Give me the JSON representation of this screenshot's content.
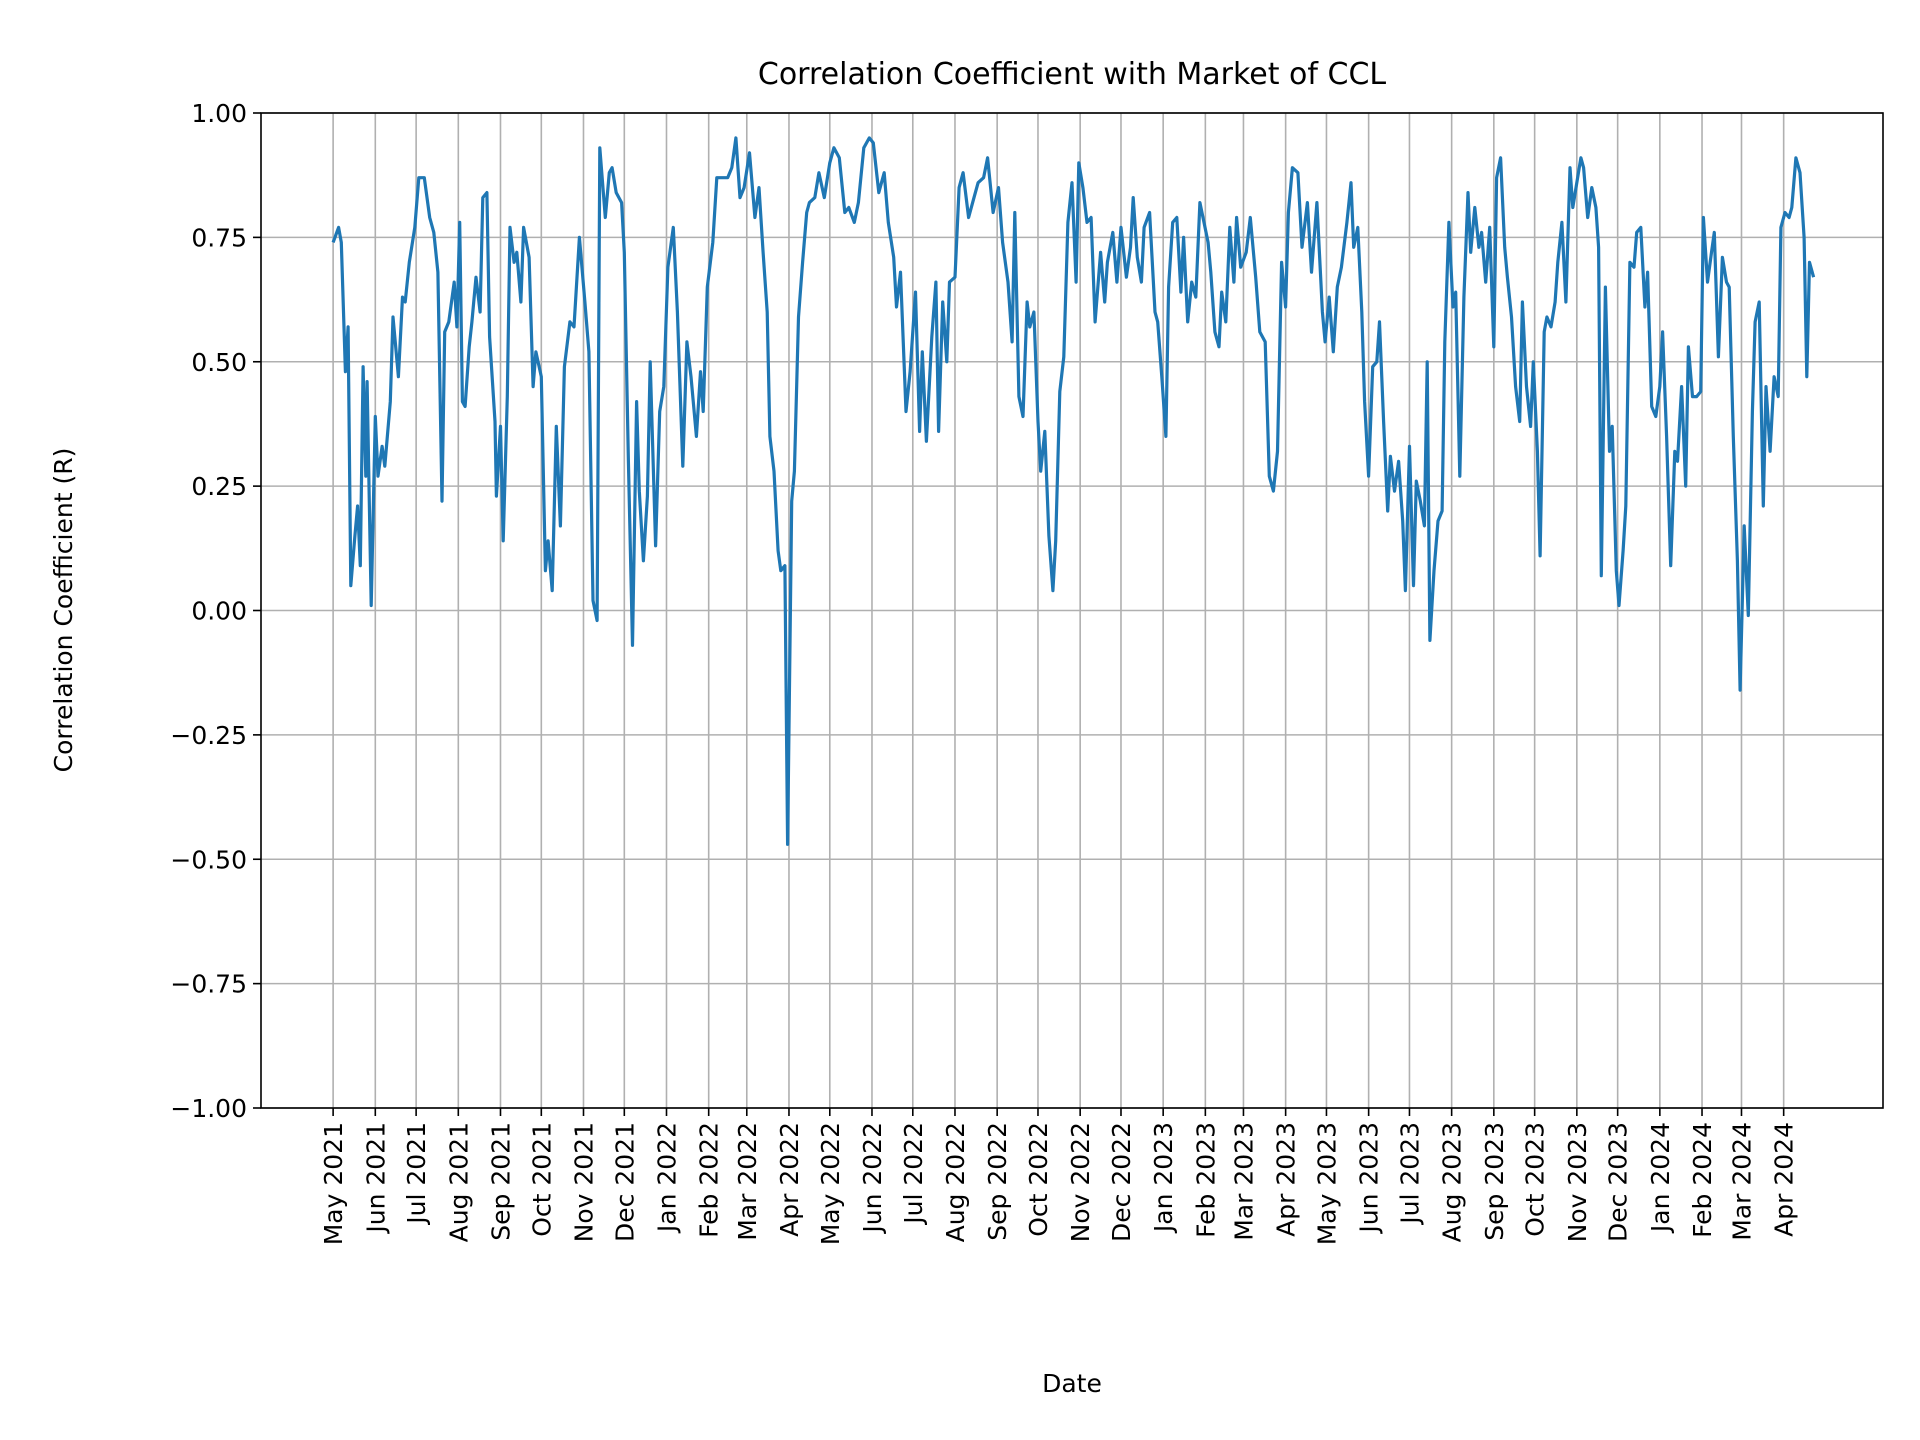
{
  "chart_data": {
    "type": "line",
    "title": "Correlation Coefficient with Market of CCL",
    "xlabel": "Date",
    "ylabel": "Correlation Coefficient (R)",
    "ylim": [
      -1.0,
      1.0
    ],
    "xlim": [
      "2021-03-09",
      "2024-06-13"
    ],
    "grid": true,
    "line_color": "#1f77b4",
    "y_ticks": [
      1.0,
      0.75,
      0.5,
      0.25,
      0.0,
      -0.25,
      -0.5,
      -0.75,
      -1.0
    ],
    "y_tick_labels": [
      "1.00",
      "0.75",
      "0.50",
      "0.25",
      "0.00",
      "−0.25",
      "−0.50",
      "−0.75",
      "−1.00"
    ],
    "x_ticks": [
      "2021-05-01",
      "2021-06-01",
      "2021-07-01",
      "2021-08-01",
      "2021-09-01",
      "2021-10-01",
      "2021-11-01",
      "2021-12-01",
      "2022-01-01",
      "2022-02-01",
      "2022-03-01",
      "2022-04-01",
      "2022-05-01",
      "2022-06-01",
      "2022-07-01",
      "2022-08-01",
      "2022-09-01",
      "2022-10-01",
      "2022-11-01",
      "2022-12-01",
      "2023-01-01",
      "2023-02-01",
      "2023-03-01",
      "2023-04-01",
      "2023-05-01",
      "2023-06-01",
      "2023-07-01",
      "2023-08-01",
      "2023-09-01",
      "2023-10-01",
      "2023-11-01",
      "2023-12-01",
      "2024-01-01",
      "2024-02-01",
      "2024-03-01",
      "2024-04-01"
    ],
    "x_tick_labels": [
      "May 2021",
      "Jun 2021",
      "Jul 2021",
      "Aug 2021",
      "Sep 2021",
      "Oct 2021",
      "Nov 2021",
      "Dec 2021",
      "Jan 2022",
      "Feb 2022",
      "Mar 2022",
      "Apr 2022",
      "May 2022",
      "Jun 2022",
      "Jul 2022",
      "Aug 2022",
      "Sep 2022",
      "Oct 2022",
      "Nov 2022",
      "Dec 2022",
      "Jan 2023",
      "Feb 2023",
      "Mar 2023",
      "Apr 2023",
      "May 2023",
      "Jun 2023",
      "Jul 2023",
      "Aug 2023",
      "Sep 2023",
      "Oct 2023",
      "Nov 2023",
      "Dec 2023",
      "Jan 2024",
      "Feb 2024",
      "Mar 2024",
      "Apr 2024"
    ],
    "series": [
      {
        "x": [
          "2021-05-01",
          "2021-05-05",
          "2021-05-07",
          "2021-05-10",
          "2021-05-12",
          "2021-05-14",
          "2021-05-17",
          "2021-05-19",
          "2021-05-21",
          "2021-05-23",
          "2021-05-25",
          "2021-05-26",
          "2021-05-29",
          "2021-06-01",
          "2021-06-03",
          "2021-06-06",
          "2021-06-08",
          "2021-06-12",
          "2021-06-14",
          "2021-06-18",
          "2021-06-21",
          "2021-06-23",
          "2021-06-26",
          "2021-06-30",
          "2021-07-03",
          "2021-07-07",
          "2021-07-11",
          "2021-07-14",
          "2021-07-17",
          "2021-07-20",
          "2021-07-22",
          "2021-07-25",
          "2021-07-29",
          "2021-07-31",
          "2021-08-02",
          "2021-08-04",
          "2021-08-06",
          "2021-08-09",
          "2021-08-11",
          "2021-08-14",
          "2021-08-17",
          "2021-08-19",
          "2021-08-22",
          "2021-08-24",
          "2021-08-28",
          "2021-08-29",
          "2021-09-01",
          "2021-09-03",
          "2021-09-06",
          "2021-09-08",
          "2021-09-11",
          "2021-09-13",
          "2021-09-16",
          "2021-09-18",
          "2021-09-22",
          "2021-09-25",
          "2021-09-27",
          "2021-10-01",
          "2021-10-04",
          "2021-10-06",
          "2021-10-09",
          "2021-10-12",
          "2021-10-15",
          "2021-10-18",
          "2021-10-22",
          "2021-10-25",
          "2021-10-29",
          "2021-11-02",
          "2021-11-05",
          "2021-11-08",
          "2021-11-11",
          "2021-11-13",
          "2021-11-17",
          "2021-11-20",
          "2021-11-22",
          "2021-11-25",
          "2021-11-29",
          "2021-12-01",
          "2021-12-04",
          "2021-12-07",
          "2021-12-10",
          "2021-12-12",
          "2021-12-15",
          "2021-12-18",
          "2021-12-20",
          "2021-12-24",
          "2021-12-27",
          "2021-12-30",
          "2022-01-02",
          "2022-01-06",
          "2022-01-09",
          "2022-01-13",
          "2022-01-16",
          "2022-01-19",
          "2022-01-23",
          "2022-01-26",
          "2022-01-28",
          "2022-01-31",
          "2022-02-04",
          "2022-02-07",
          "2022-02-11",
          "2022-02-15",
          "2022-02-18",
          "2022-02-21",
          "2022-02-24",
          "2022-02-27",
          "2022-03-03",
          "2022-03-07",
          "2022-03-10",
          "2022-03-13",
          "2022-03-16",
          "2022-03-18",
          "2022-03-21",
          "2022-03-24",
          "2022-03-26",
          "2022-03-29",
          "2022-03-31",
          "2022-04-03",
          "2022-04-05",
          "2022-04-08",
          "2022-04-11",
          "2022-04-14",
          "2022-04-16",
          "2022-04-20",
          "2022-04-23",
          "2022-04-27",
          "2022-05-01",
          "2022-05-04",
          "2022-05-08",
          "2022-05-12",
          "2022-05-15",
          "2022-05-19",
          "2022-05-22",
          "2022-05-26",
          "2022-05-30",
          "2022-06-02",
          "2022-06-06",
          "2022-06-10",
          "2022-06-13",
          "2022-06-17",
          "2022-06-19",
          "2022-06-22",
          "2022-06-26",
          "2022-06-29",
          "2022-07-03",
          "2022-07-06",
          "2022-07-08",
          "2022-07-11",
          "2022-07-15",
          "2022-07-18",
          "2022-07-20",
          "2022-07-23",
          "2022-07-26",
          "2022-07-28",
          "2022-08-01",
          "2022-08-04",
          "2022-08-07",
          "2022-08-11",
          "2022-08-15",
          "2022-08-18",
          "2022-08-22",
          "2022-08-25",
          "2022-08-29",
          "2022-09-02",
          "2022-09-05",
          "2022-09-09",
          "2022-09-12",
          "2022-09-14",
          "2022-09-17",
          "2022-09-20",
          "2022-09-23",
          "2022-09-25",
          "2022-09-28",
          "2022-10-01",
          "2022-10-03",
          "2022-10-06",
          "2022-10-09",
          "2022-10-12",
          "2022-10-14",
          "2022-10-17",
          "2022-10-20",
          "2022-10-23",
          "2022-10-26",
          "2022-10-29",
          "2022-10-31",
          "2022-11-03",
          "2022-11-06",
          "2022-11-09",
          "2022-11-12",
          "2022-11-16",
          "2022-11-19",
          "2022-11-21",
          "2022-11-25",
          "2022-11-28",
          "2022-12-01",
          "2022-12-05",
          "2022-12-08",
          "2022-12-10",
          "2022-12-13",
          "2022-12-16",
          "2022-12-18",
          "2022-12-22",
          "2022-12-26",
          "2022-12-28",
          "2022-12-31",
          "2023-01-03",
          "2023-01-05",
          "2023-01-08",
          "2023-01-11",
          "2023-01-14",
          "2023-01-16",
          "2023-01-19",
          "2023-01-22",
          "2023-01-25",
          "2023-01-28",
          "2023-01-31",
          "2023-02-03",
          "2023-02-05",
          "2023-02-08",
          "2023-02-11",
          "2023-02-13",
          "2023-02-16",
          "2023-02-19",
          "2023-02-22",
          "2023-02-24",
          "2023-02-27",
          "2023-03-03",
          "2023-03-06",
          "2023-03-10",
          "2023-03-13",
          "2023-03-17",
          "2023-03-20",
          "2023-03-23",
          "2023-03-26",
          "2023-03-29",
          "2023-04-01",
          "2023-04-03",
          "2023-04-06",
          "2023-04-10",
          "2023-04-13",
          "2023-04-17",
          "2023-04-20",
          "2023-04-24",
          "2023-04-28",
          "2023-04-30",
          "2023-05-03",
          "2023-05-06",
          "2023-05-09",
          "2023-05-12",
          "2023-05-16",
          "2023-05-19",
          "2023-05-21",
          "2023-05-24",
          "2023-05-27",
          "2023-05-29",
          "2023-06-01",
          "2023-06-04",
          "2023-06-07",
          "2023-06-09",
          "2023-06-12",
          "2023-06-15",
          "2023-06-17",
          "2023-06-20",
          "2023-06-23",
          "2023-06-26",
          "2023-06-28",
          "2023-07-01",
          "2023-07-04",
          "2023-07-06",
          "2023-07-09",
          "2023-07-12",
          "2023-07-14",
          "2023-07-16",
          "2023-07-19",
          "2023-07-22",
          "2023-07-25",
          "2023-07-27",
          "2023-07-30",
          "2023-08-02",
          "2023-08-04",
          "2023-08-07",
          "2023-08-10",
          "2023-08-13",
          "2023-08-15",
          "2023-08-18",
          "2023-08-21",
          "2023-08-23",
          "2023-08-26",
          "2023-08-29",
          "2023-09-01",
          "2023-09-03",
          "2023-09-06",
          "2023-09-09",
          "2023-09-11",
          "2023-09-14",
          "2023-09-17",
          "2023-09-20",
          "2023-09-22",
          "2023-09-25",
          "2023-09-28",
          "2023-09-30",
          "2023-10-03",
          "2023-10-05",
          "2023-10-08",
          "2023-10-10",
          "2023-10-13",
          "2023-10-16",
          "2023-10-18",
          "2023-10-21",
          "2023-10-24",
          "2023-10-27",
          "2023-10-29",
          "2023-11-01",
          "2023-11-04",
          "2023-11-06",
          "2023-11-09",
          "2023-11-12",
          "2023-11-15",
          "2023-11-17",
          "2023-11-19",
          "2023-11-22",
          "2023-11-25",
          "2023-11-27",
          "2023-11-30",
          "2023-12-02",
          "2023-12-05",
          "2023-12-07",
          "2023-12-10",
          "2023-12-13",
          "2023-12-15",
          "2023-12-18",
          "2023-12-21",
          "2023-12-23",
          "2023-12-26",
          "2023-12-29",
          "2024-01-01",
          "2024-01-03",
          "2024-01-06",
          "2024-01-09",
          "2024-01-12",
          "2024-01-14",
          "2024-01-17",
          "2024-01-20",
          "2024-01-22",
          "2024-01-25",
          "2024-01-28",
          "2024-01-31",
          "2024-02-02",
          "2024-02-05",
          "2024-02-08",
          "2024-02-10",
          "2024-02-13",
          "2024-02-16",
          "2024-02-19",
          "2024-02-21",
          "2024-02-24",
          "2024-02-27",
          "2024-02-29",
          "2024-03-03",
          "2024-03-06",
          "2024-03-09",
          "2024-03-11",
          "2024-03-14",
          "2024-03-17",
          "2024-03-19",
          "2024-03-22",
          "2024-03-25",
          "2024-03-28",
          "2024-03-30",
          "2024-04-02",
          "2024-04-05",
          "2024-04-07",
          "2024-04-10",
          "2024-04-13",
          "2024-04-16",
          "2024-04-18",
          "2024-04-20",
          "2024-04-23"
        ],
        "y": [
          0.74,
          0.77,
          0.74,
          0.48,
          0.57,
          0.05,
          0.15,
          0.21,
          0.09,
          0.49,
          0.27,
          0.46,
          0.01,
          0.39,
          0.27,
          0.33,
          0.29,
          0.42,
          0.59,
          0.47,
          0.63,
          0.62,
          0.7,
          0.77,
          0.87,
          0.87,
          0.79,
          0.76,
          0.68,
          0.22,
          0.56,
          0.58,
          0.66,
          0.57,
          0.78,
          0.42,
          0.41,
          0.53,
          0.58,
          0.67,
          0.6,
          0.83,
          0.84,
          0.55,
          0.38,
          0.23,
          0.37,
          0.14,
          0.43,
          0.77,
          0.7,
          0.72,
          0.62,
          0.77,
          0.71,
          0.45,
          0.52,
          0.47,
          0.08,
          0.14,
          0.04,
          0.37,
          0.17,
          0.49,
          0.58,
          0.57,
          0.75,
          0.62,
          0.52,
          0.02,
          -0.02,
          0.93,
          0.79,
          0.88,
          0.89,
          0.84,
          0.82,
          0.72,
          0.3,
          -0.07,
          0.42,
          0.24,
          0.1,
          0.23,
          0.5,
          0.13,
          0.4,
          0.45,
          0.69,
          0.77,
          0.6,
          0.29,
          0.54,
          0.47,
          0.35,
          0.48,
          0.4,
          0.65,
          0.74,
          0.87,
          0.87,
          0.87,
          0.89,
          0.95,
          0.83,
          0.85,
          0.92,
          0.79,
          0.85,
          0.72,
          0.6,
          0.35,
          0.28,
          0.12,
          0.08,
          0.09,
          -0.47,
          0.22,
          0.28,
          0.59,
          0.7,
          0.8,
          0.82,
          0.83,
          0.88,
          0.83,
          0.9,
          0.93,
          0.91,
          0.8,
          0.81,
          0.78,
          0.82,
          0.93,
          0.95,
          0.94,
          0.84,
          0.88,
          0.78,
          0.71,
          0.61,
          0.68,
          0.4,
          0.48,
          0.64,
          0.36,
          0.52,
          0.34,
          0.55,
          0.66,
          0.36,
          0.62,
          0.5,
          0.66,
          0.67,
          0.85,
          0.88,
          0.79,
          0.83,
          0.86,
          0.87,
          0.91,
          0.8,
          0.85,
          0.74,
          0.66,
          0.54,
          0.8,
          0.43,
          0.39,
          0.62,
          0.57,
          0.6,
          0.38,
          0.28,
          0.36,
          0.15,
          0.04,
          0.14,
          0.44,
          0.51,
          0.78,
          0.86,
          0.66,
          0.9,
          0.85,
          0.78,
          0.79,
          0.58,
          0.72,
          0.62,
          0.7,
          0.76,
          0.66,
          0.77,
          0.67,
          0.73,
          0.83,
          0.71,
          0.66,
          0.77,
          0.8,
          0.6,
          0.58,
          0.47,
          0.35,
          0.65,
          0.78,
          0.79,
          0.64,
          0.75,
          0.58,
          0.66,
          0.63,
          0.82,
          0.78,
          0.74,
          0.68,
          0.56,
          0.53,
          0.64,
          0.58,
          0.77,
          0.66,
          0.79,
          0.69,
          0.72,
          0.79,
          0.67,
          0.56,
          0.54,
          0.27,
          0.24,
          0.32,
          0.7,
          0.61,
          0.8,
          0.89,
          0.88,
          0.73,
          0.82,
          0.68,
          0.82,
          0.6,
          0.54,
          0.63,
          0.52,
          0.65,
          0.69,
          0.78,
          0.86,
          0.73,
          0.77,
          0.6,
          0.42,
          0.27,
          0.49,
          0.5,
          0.58,
          0.38,
          0.2,
          0.31,
          0.24,
          0.3,
          0.18,
          0.04,
          0.33,
          0.05,
          0.26,
          0.22,
          0.17,
          0.5,
          -0.06,
          0.08,
          0.18,
          0.2,
          0.54,
          0.78,
          0.61,
          0.64,
          0.27,
          0.63,
          0.84,
          0.72,
          0.81,
          0.73,
          0.76,
          0.66,
          0.77,
          0.53,
          0.87,
          0.91,
          0.73,
          0.67,
          0.59,
          0.45,
          0.38,
          0.62,
          0.45,
          0.37,
          0.5,
          0.32,
          0.11,
          0.56,
          0.59,
          0.57,
          0.62,
          0.7,
          0.78,
          0.62,
          0.89,
          0.81,
          0.86,
          0.91,
          0.89,
          0.79,
          0.85,
          0.81,
          0.73,
          0.07,
          0.65,
          0.32,
          0.37,
          0.08,
          0.01,
          0.12,
          0.21,
          0.7,
          0.69,
          0.76,
          0.77,
          0.61,
          0.68,
          0.41,
          0.39,
          0.45,
          0.56,
          0.35,
          0.09,
          0.32,
          0.3,
          0.45,
          0.25,
          0.53,
          0.43,
          0.43,
          0.44,
          0.79,
          0.66,
          0.72,
          0.76,
          0.51,
          0.71,
          0.66,
          0.65,
          0.35,
          0.1,
          -0.16,
          0.17,
          -0.01,
          0.4,
          0.58,
          0.62,
          0.21,
          0.45,
          0.32,
          0.47,
          0.43,
          0.77,
          0.8,
          0.79,
          0.81,
          0.91,
          0.88,
          0.75,
          0.47,
          0.7,
          0.67
        ]
      }
    ]
  }
}
